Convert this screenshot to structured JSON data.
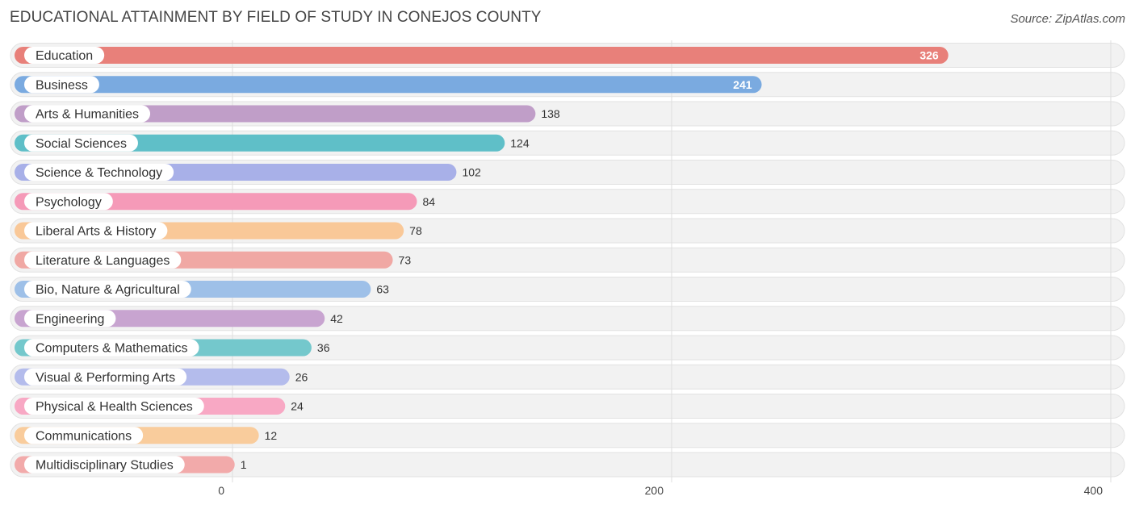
{
  "chart_data": {
    "type": "bar",
    "orientation": "horizontal",
    "title": "EDUCATIONAL ATTAINMENT BY FIELD OF STUDY IN CONEJOS COUNTY",
    "source": "Source: ZipAtlas.com",
    "xlim": [
      0,
      400
    ],
    "ticks": [
      0,
      200,
      400
    ],
    "tick_labels": [
      "0",
      "200",
      "400"
    ],
    "grid": true,
    "categories": [
      "Education",
      "Business",
      "Arts & Humanities",
      "Social Sciences",
      "Science & Technology",
      "Psychology",
      "Liberal Arts & History",
      "Literature & Languages",
      "Bio, Nature & Agricultural",
      "Engineering",
      "Computers & Mathematics",
      "Visual & Performing Arts",
      "Physical & Health Sciences",
      "Communications",
      "Multidisciplinary Studies"
    ],
    "values": [
      326,
      241,
      138,
      124,
      102,
      84,
      78,
      73,
      63,
      42,
      36,
      26,
      24,
      12,
      1
    ],
    "value_labels": [
      "326",
      "241",
      "138",
      "124",
      "102",
      "84",
      "78",
      "73",
      "63",
      "42",
      "36",
      "26",
      "24",
      "12",
      "1"
    ],
    "colors": [
      "#e8807a",
      "#7aaae0",
      "#c09ec8",
      "#5fbfc8",
      "#a8b0e8",
      "#f59ab8",
      "#f9c898",
      "#f0a8a4",
      "#9ec0e8",
      "#c8a4d0",
      "#74c8cc",
      "#b4bcec",
      "#f8a8c4",
      "#f9cc9c",
      "#f2aaaa"
    ]
  }
}
